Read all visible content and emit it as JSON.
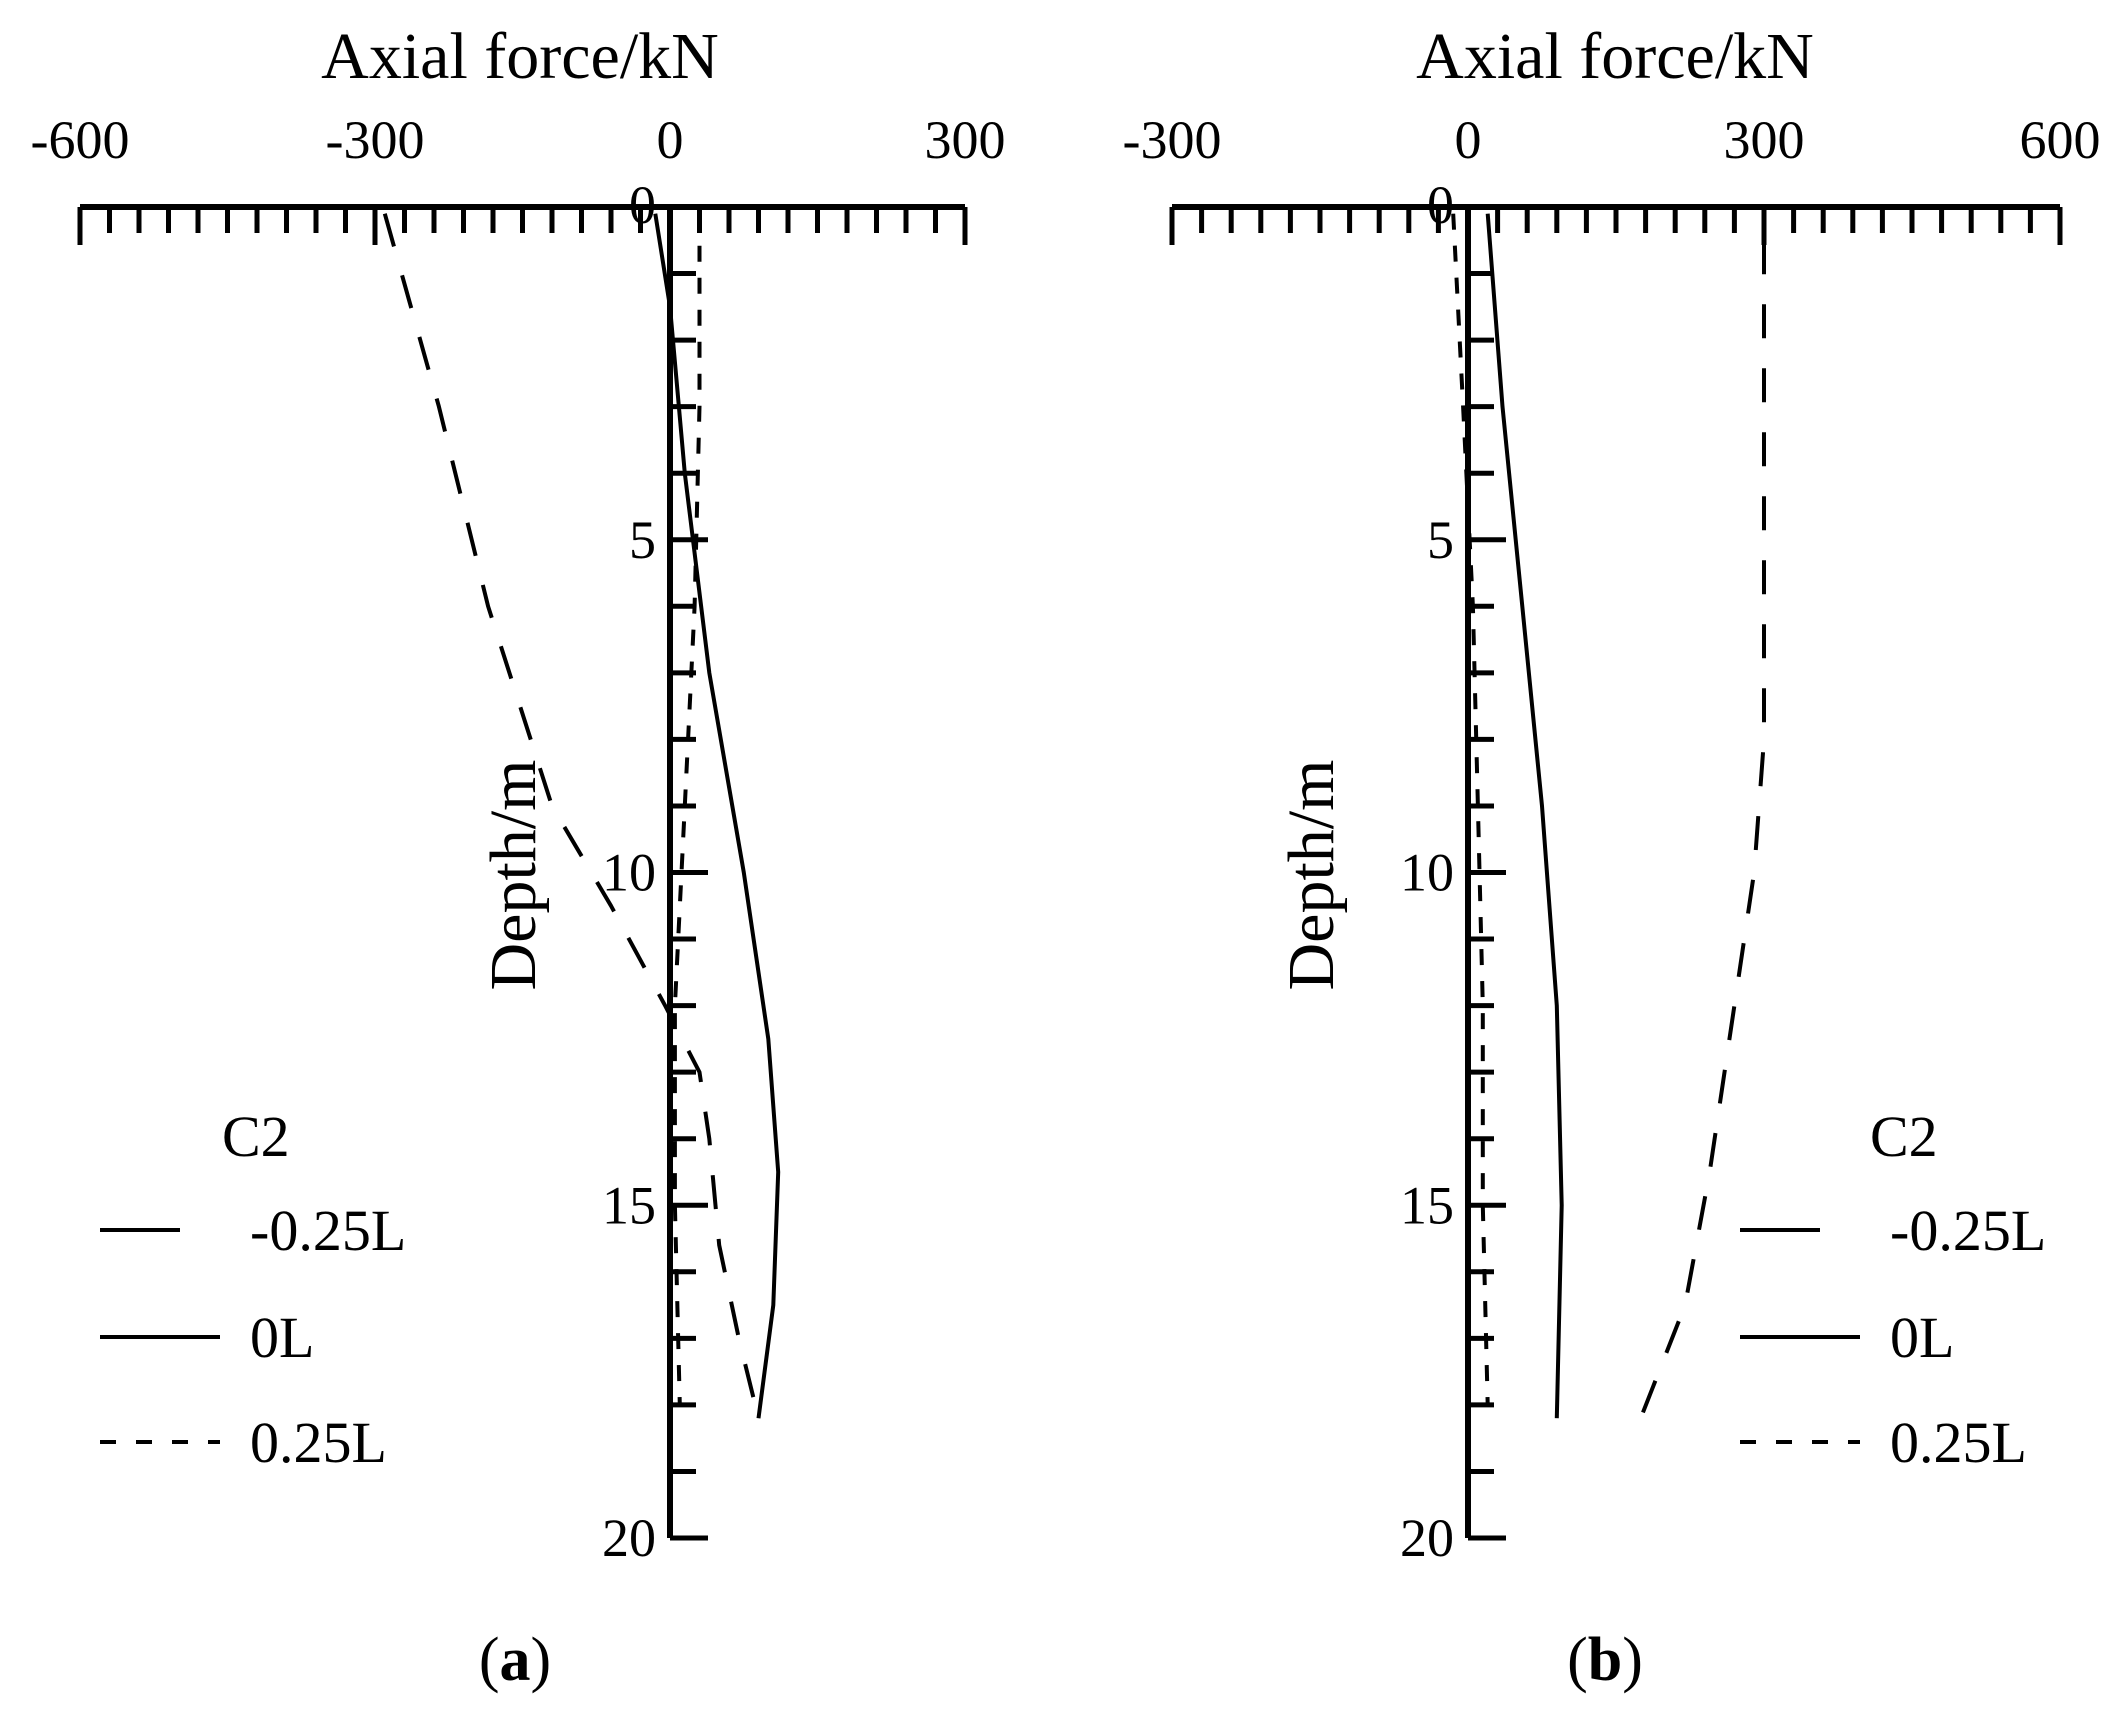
{
  "chart_data": [
    {
      "type": "line",
      "panel_label": "a",
      "xlabel": "Axial force/kN",
      "ylabel": "Depth/m",
      "xlim": [
        -600,
        300
      ],
      "ylim": [
        0,
        20
      ],
      "x_ticks": [
        "-600",
        "-300",
        "0",
        "300"
      ],
      "y_ticks": [
        "0",
        "5",
        "10",
        "15",
        "20"
      ],
      "x_axis_position": "top",
      "y_axis_inverted": true,
      "grid": false,
      "legend": {
        "title": "C2",
        "position": "bottom-left"
      },
      "series": [
        {
          "name": "-0.25L",
          "style": "long-dash",
          "points": [
            [
              -290,
              0.1
            ],
            [
              -235,
              3.0
            ],
            [
              -185,
              6.0
            ],
            [
              -120,
              9.0
            ],
            [
              -60,
              10.5
            ],
            [
              -5,
              12.0
            ],
            [
              30,
              13.0
            ],
            [
              40,
              14.0
            ],
            [
              50,
              15.6
            ],
            [
              70,
              17.0
            ],
            [
              90,
              18.2
            ]
          ]
        },
        {
          "name": "0L",
          "style": "solid",
          "points": [
            [
              -15,
              0.1
            ],
            [
              0,
              1.5
            ],
            [
              15,
              4.0
            ],
            [
              40,
              7.0
            ],
            [
              75,
              10.0
            ],
            [
              100,
              12.5
            ],
            [
              110,
              14.5
            ],
            [
              105,
              16.5
            ],
            [
              90,
              18.2
            ]
          ]
        },
        {
          "name": "0.25L",
          "style": "short-dash",
          "points": [
            [
              30,
              0.1
            ],
            [
              30,
              3.0
            ],
            [
              25,
              6.0
            ],
            [
              15,
              9.0
            ],
            [
              5,
              12.0
            ],
            [
              5,
              15.0
            ],
            [
              10,
              18.0
            ]
          ]
        }
      ]
    },
    {
      "type": "line",
      "panel_label": "b",
      "xlabel": "Axial force/kN",
      "ylabel": "Depth/m",
      "xlim": [
        -300,
        600
      ],
      "ylim": [
        0,
        20
      ],
      "x_ticks": [
        "-300",
        "0",
        "300",
        "600"
      ],
      "y_ticks": [
        "0",
        "5",
        "10",
        "15",
        "20"
      ],
      "x_axis_position": "top",
      "y_axis_inverted": true,
      "grid": false,
      "legend": {
        "title": "C2",
        "position": "bottom-right"
      },
      "series": [
        {
          "name": "-0.25L",
          "style": "long-dash",
          "points": [
            [
              300,
              0.5
            ],
            [
              300,
              4.0
            ],
            [
              300,
              8.0
            ],
            [
              290,
              10.0
            ],
            [
              270,
              12.0
            ],
            [
              245,
              14.5
            ],
            [
              220,
              16.5
            ],
            [
              175,
              18.2
            ]
          ]
        },
        {
          "name": "0L",
          "style": "solid",
          "points": [
            [
              20,
              0.1
            ],
            [
              35,
              3.0
            ],
            [
              55,
              6.0
            ],
            [
              75,
              9.0
            ],
            [
              90,
              12.0
            ],
            [
              95,
              15.0
            ],
            [
              90,
              18.2
            ]
          ]
        },
        {
          "name": "0.25L",
          "style": "short-dash",
          "points": [
            [
              -15,
              0.1
            ],
            [
              -5,
              3.0
            ],
            [
              5,
              6.0
            ],
            [
              10,
              9.0
            ],
            [
              15,
              12.0
            ],
            [
              15,
              15.0
            ],
            [
              20,
              18.0
            ]
          ]
        }
      ]
    }
  ]
}
